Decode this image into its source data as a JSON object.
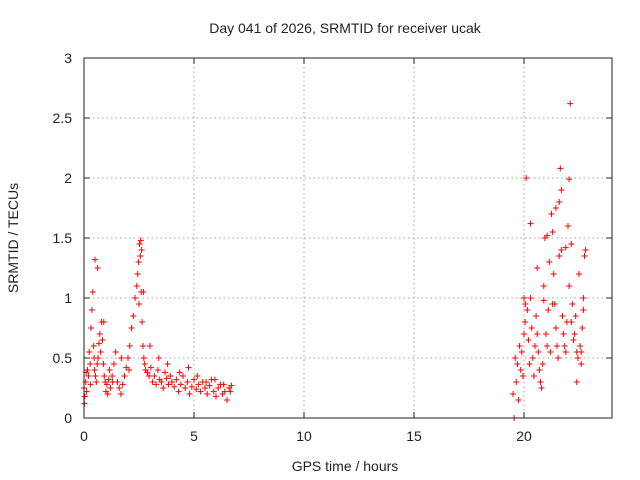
{
  "chart_data": {
    "type": "scatter",
    "title": "Day 041 of 2026, SRMTID for receiver ucak",
    "xlabel": "GPS time / hours",
    "ylabel": "SRMTID / TECUs",
    "xlim": [
      0,
      24
    ],
    "ylim": [
      0,
      3
    ],
    "xticks": [
      0,
      5,
      10,
      15,
      20
    ],
    "xtick_labels": [
      "0",
      "5",
      "10",
      "15",
      "20"
    ],
    "yticks": [
      0,
      0.5,
      1,
      1.5,
      2,
      2.5,
      3
    ],
    "ytick_labels": [
      "0",
      "0.5",
      "1",
      "1.5",
      "2",
      "2.5",
      "3"
    ],
    "grid": true,
    "marker": "+",
    "series": [
      {
        "name": "SRMTID",
        "color": "#ff0000",
        "x": [
          0.0,
          0.04,
          0.08,
          0.12,
          0.16,
          0.2,
          0.24,
          0.28,
          0.32,
          0.36,
          0.4,
          0.44,
          0.48,
          0.52,
          0.56,
          0.6,
          0.64,
          0.68,
          0.72,
          0.76,
          0.8,
          0.84,
          0.88,
          0.92,
          0.96,
          1.0,
          1.04,
          1.08,
          1.12,
          1.16,
          1.2,
          1.28,
          1.36,
          1.44,
          1.52,
          1.6,
          1.68,
          1.76,
          1.84,
          1.92,
          2.0,
          2.08,
          2.16,
          2.24,
          2.32,
          2.4,
          2.44,
          2.48,
          2.52,
          2.56,
          2.6,
          2.64,
          2.68,
          2.72,
          2.76,
          2.8,
          2.88,
          2.96,
          3.04,
          3.12,
          3.2,
          3.28,
          3.36,
          3.44,
          3.52,
          3.6,
          3.68,
          3.76,
          3.84,
          3.92,
          4.0,
          4.1,
          4.2,
          4.3,
          4.4,
          4.5,
          4.6,
          4.7,
          4.8,
          4.9,
          5.0,
          5.1,
          5.2,
          5.3,
          5.4,
          5.5,
          5.6,
          5.7,
          5.8,
          5.9,
          6.0,
          6.1,
          6.2,
          6.3,
          6.4,
          6.5,
          6.6,
          6.7,
          0.02,
          0.1,
          0.3,
          0.46,
          0.5,
          0.62,
          0.9,
          1.3,
          1.7,
          2.05,
          2.5,
          2.58,
          2.62,
          2.7,
          3.0,
          3.4,
          3.8,
          4.35,
          4.75,
          5.15,
          5.55,
          5.95,
          6.35,
          6.65,
          19.5,
          19.55,
          19.6,
          19.65,
          19.7,
          19.75,
          19.8,
          19.85,
          19.9,
          19.95,
          20.0,
          20.05,
          20.1,
          20.15,
          20.2,
          20.25,
          20.3,
          20.35,
          20.4,
          20.45,
          20.5,
          20.55,
          20.6,
          20.65,
          20.7,
          20.75,
          20.8,
          20.85,
          20.9,
          20.95,
          21.0,
          21.05,
          21.1,
          21.15,
          21.2,
          21.25,
          21.3,
          21.35,
          21.4,
          21.45,
          21.5,
          21.55,
          21.6,
          21.65,
          21.7,
          21.75,
          21.8,
          21.85,
          21.9,
          21.95,
          22.0,
          22.05,
          22.1,
          22.15,
          22.2,
          22.25,
          22.3,
          22.35,
          22.4,
          22.45,
          22.5,
          22.55,
          22.6,
          22.65,
          22.7,
          22.75,
          22.8,
          20.0,
          20.06,
          20.3,
          20.6,
          20.9,
          21.05,
          21.3,
          21.45,
          21.6,
          21.7,
          21.9,
          22.05,
          22.15,
          22.4,
          22.6,
          22.7
        ],
        "y": [
          0.25,
          0.18,
          0.3,
          0.22,
          0.4,
          0.35,
          0.55,
          0.45,
          0.75,
          0.9,
          1.05,
          0.6,
          0.4,
          0.35,
          0.3,
          0.45,
          0.5,
          0.62,
          0.7,
          0.55,
          0.8,
          0.65,
          0.45,
          0.35,
          0.3,
          0.22,
          0.28,
          0.2,
          0.32,
          0.4,
          0.25,
          0.35,
          0.45,
          0.55,
          0.3,
          0.25,
          0.2,
          0.28,
          0.35,
          0.42,
          0.5,
          0.6,
          0.75,
          0.85,
          1.0,
          1.1,
          1.2,
          1.3,
          1.45,
          1.35,
          1.05,
          0.8,
          0.6,
          0.5,
          0.45,
          0.4,
          0.38,
          0.35,
          0.42,
          0.3,
          0.35,
          0.28,
          0.4,
          0.32,
          0.3,
          0.25,
          0.38,
          0.33,
          0.28,
          0.35,
          0.3,
          0.26,
          0.32,
          0.22,
          0.28,
          0.35,
          0.25,
          0.3,
          0.2,
          0.26,
          0.32,
          0.24,
          0.28,
          0.22,
          0.3,
          0.25,
          0.2,
          0.27,
          0.32,
          0.22,
          0.18,
          0.25,
          0.28,
          0.2,
          0.22,
          0.15,
          0.25,
          0.27,
          0.12,
          0.38,
          0.28,
          0.5,
          1.32,
          1.25,
          0.8,
          0.3,
          0.5,
          0.4,
          0.95,
          1.48,
          1.4,
          1.05,
          0.6,
          0.5,
          0.45,
          0.38,
          0.42,
          0.35,
          0.3,
          0.32,
          0.28,
          0.22,
          0.2,
          0.0,
          0.5,
          0.3,
          0.45,
          0.15,
          0.6,
          0.4,
          0.55,
          0.35,
          0.7,
          0.8,
          2.0,
          0.9,
          0.65,
          0.45,
          1.0,
          0.75,
          0.5,
          0.35,
          0.6,
          0.85,
          0.7,
          0.55,
          0.4,
          0.3,
          0.25,
          0.45,
          1.1,
          1.5,
          0.7,
          0.6,
          0.9,
          1.3,
          0.55,
          1.7,
          1.55,
          1.2,
          0.95,
          0.75,
          0.6,
          0.5,
          1.8,
          2.08,
          1.4,
          0.85,
          0.7,
          0.6,
          0.55,
          0.8,
          1.6,
          1.99,
          2.62,
          1.45,
          0.95,
          0.65,
          0.7,
          0.85,
          0.55,
          0.5,
          1.2,
          0.6,
          0.45,
          0.75,
          0.9,
          1.35,
          1.4,
          1.0,
          0.95,
          1.62,
          1.25,
          0.98,
          1.52,
          0.95,
          1.75,
          1.35,
          1.9,
          1.42,
          1.1,
          0.8,
          0.3,
          0.55,
          1.0
        ]
      }
    ]
  }
}
